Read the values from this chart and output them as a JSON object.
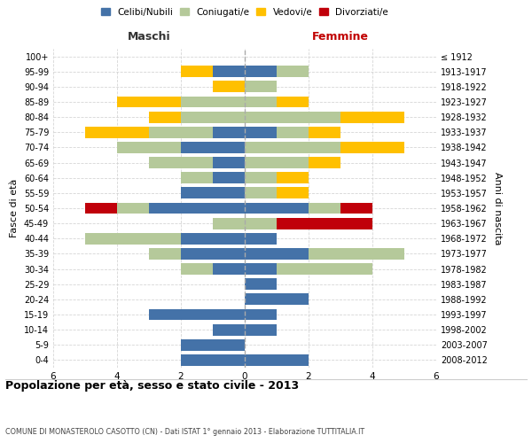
{
  "age_groups": [
    "100+",
    "95-99",
    "90-94",
    "85-89",
    "80-84",
    "75-79",
    "70-74",
    "65-69",
    "60-64",
    "55-59",
    "50-54",
    "45-49",
    "40-44",
    "35-39",
    "30-34",
    "25-29",
    "20-24",
    "15-19",
    "10-14",
    "5-9",
    "0-4"
  ],
  "birth_years": [
    "≤ 1912",
    "1913-1917",
    "1918-1922",
    "1923-1927",
    "1928-1932",
    "1933-1937",
    "1938-1942",
    "1943-1947",
    "1948-1952",
    "1953-1957",
    "1958-1962",
    "1963-1967",
    "1968-1972",
    "1973-1977",
    "1978-1982",
    "1983-1987",
    "1988-1992",
    "1993-1997",
    "1998-2002",
    "2003-2007",
    "2008-2012"
  ],
  "males": {
    "celibi": [
      0,
      1,
      0,
      0,
      0,
      1,
      2,
      1,
      1,
      2,
      3,
      0,
      2,
      2,
      1,
      0,
      0,
      3,
      1,
      2,
      2
    ],
    "coniugati": [
      0,
      0,
      0,
      2,
      2,
      2,
      2,
      2,
      1,
      0,
      1,
      1,
      3,
      1,
      1,
      0,
      0,
      0,
      0,
      0,
      0
    ],
    "vedovi": [
      0,
      1,
      1,
      2,
      1,
      2,
      0,
      0,
      0,
      0,
      0,
      0,
      0,
      0,
      0,
      0,
      0,
      0,
      0,
      0,
      0
    ],
    "divorziati": [
      0,
      0,
      0,
      0,
      0,
      0,
      0,
      0,
      0,
      0,
      1,
      0,
      0,
      0,
      0,
      0,
      0,
      0,
      0,
      0,
      0
    ]
  },
  "females": {
    "nubili": [
      0,
      1,
      0,
      0,
      0,
      1,
      0,
      0,
      0,
      0,
      2,
      0,
      1,
      2,
      1,
      1,
      2,
      1,
      1,
      0,
      2
    ],
    "coniugate": [
      0,
      1,
      1,
      1,
      3,
      1,
      3,
      2,
      1,
      1,
      1,
      1,
      0,
      3,
      3,
      0,
      0,
      0,
      0,
      0,
      0
    ],
    "vedove": [
      0,
      0,
      0,
      1,
      2,
      1,
      2,
      1,
      1,
      1,
      0,
      0,
      0,
      0,
      0,
      0,
      0,
      0,
      0,
      0,
      0
    ],
    "divorziate": [
      0,
      0,
      0,
      0,
      0,
      0,
      0,
      0,
      0,
      0,
      1,
      3,
      0,
      0,
      0,
      0,
      0,
      0,
      0,
      0,
      0
    ]
  },
  "colors": {
    "celibi_nubili": "#4472a8",
    "coniugati": "#b5c99a",
    "vedovi": "#ffc000",
    "divorziati": "#c0000a"
  },
  "title": "Popolazione per età, sesso e stato civile - 2013",
  "subtitle": "COMUNE DI MONASTEROLO CASOTTO (CN) - Dati ISTAT 1° gennaio 2013 - Elaborazione TUTTITALIA.IT",
  "xlabel_left": "Maschi",
  "xlabel_right": "Femmine",
  "ylabel": "Fasce di età",
  "ylabel_right": "Anni di nascita",
  "xlim": 6,
  "background_color": "#ffffff",
  "grid_color": "#cccccc"
}
